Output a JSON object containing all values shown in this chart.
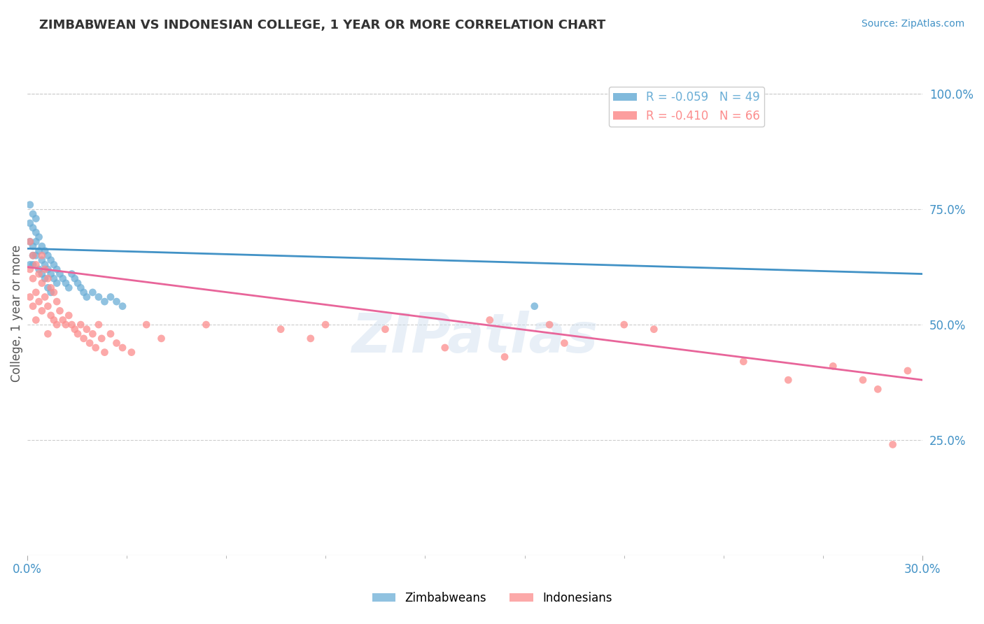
{
  "title": "ZIMBABWEAN VS INDONESIAN COLLEGE, 1 YEAR OR MORE CORRELATION CHART",
  "source_text": "Source: ZipAtlas.com",
  "ylabel": "College, 1 year or more",
  "xlim": [
    0.0,
    0.3
  ],
  "ylim": [
    0.0,
    1.05
  ],
  "xtick_labels": [
    "0.0%",
    "30.0%"
  ],
  "ytick_labels_right": [
    "25.0%",
    "50.0%",
    "75.0%",
    "100.0%"
  ],
  "ytick_vals_right": [
    0.25,
    0.5,
    0.75,
    1.0
  ],
  "legend_entries": [
    {
      "label": "R = -0.059   N = 49",
      "color": "#6baed6"
    },
    {
      "label": "R = -0.410   N = 66",
      "color": "#fc8d8d"
    }
  ],
  "zim_scatter_x": [
    0.001,
    0.001,
    0.001,
    0.001,
    0.002,
    0.002,
    0.002,
    0.002,
    0.002,
    0.003,
    0.003,
    0.003,
    0.003,
    0.004,
    0.004,
    0.004,
    0.005,
    0.005,
    0.005,
    0.006,
    0.006,
    0.006,
    0.007,
    0.007,
    0.007,
    0.008,
    0.008,
    0.008,
    0.009,
    0.009,
    0.01,
    0.01,
    0.011,
    0.012,
    0.013,
    0.014,
    0.015,
    0.016,
    0.017,
    0.018,
    0.019,
    0.02,
    0.022,
    0.024,
    0.026,
    0.028,
    0.03,
    0.032,
    0.17
  ],
  "zim_scatter_y": [
    0.68,
    0.72,
    0.76,
    0.63,
    0.74,
    0.67,
    0.71,
    0.65,
    0.63,
    0.7,
    0.65,
    0.68,
    0.73,
    0.66,
    0.62,
    0.69,
    0.64,
    0.67,
    0.61,
    0.66,
    0.63,
    0.6,
    0.65,
    0.62,
    0.58,
    0.64,
    0.61,
    0.57,
    0.63,
    0.6,
    0.62,
    0.59,
    0.61,
    0.6,
    0.59,
    0.58,
    0.61,
    0.6,
    0.59,
    0.58,
    0.57,
    0.56,
    0.57,
    0.56,
    0.55,
    0.56,
    0.55,
    0.54,
    0.54
  ],
  "ind_scatter_x": [
    0.001,
    0.001,
    0.001,
    0.002,
    0.002,
    0.002,
    0.003,
    0.003,
    0.003,
    0.004,
    0.004,
    0.005,
    0.005,
    0.005,
    0.006,
    0.006,
    0.007,
    0.007,
    0.007,
    0.008,
    0.008,
    0.009,
    0.009,
    0.01,
    0.01,
    0.011,
    0.012,
    0.013,
    0.014,
    0.015,
    0.016,
    0.017,
    0.018,
    0.019,
    0.02,
    0.021,
    0.022,
    0.023,
    0.024,
    0.025,
    0.026,
    0.028,
    0.03,
    0.032,
    0.035,
    0.04,
    0.045,
    0.06,
    0.085,
    0.095,
    0.1,
    0.12,
    0.14,
    0.155,
    0.16,
    0.175,
    0.18,
    0.2,
    0.21,
    0.24,
    0.255,
    0.27,
    0.28,
    0.285,
    0.29,
    0.295
  ],
  "ind_scatter_y": [
    0.68,
    0.62,
    0.56,
    0.65,
    0.6,
    0.54,
    0.63,
    0.57,
    0.51,
    0.61,
    0.55,
    0.65,
    0.59,
    0.53,
    0.62,
    0.56,
    0.6,
    0.54,
    0.48,
    0.58,
    0.52,
    0.57,
    0.51,
    0.55,
    0.5,
    0.53,
    0.51,
    0.5,
    0.52,
    0.5,
    0.49,
    0.48,
    0.5,
    0.47,
    0.49,
    0.46,
    0.48,
    0.45,
    0.5,
    0.47,
    0.44,
    0.48,
    0.46,
    0.45,
    0.44,
    0.5,
    0.47,
    0.5,
    0.49,
    0.47,
    0.5,
    0.49,
    0.45,
    0.51,
    0.43,
    0.5,
    0.46,
    0.5,
    0.49,
    0.42,
    0.38,
    0.41,
    0.38,
    0.36,
    0.24,
    0.4
  ],
  "zim_line_x": [
    0.0,
    0.3
  ],
  "zim_line_y": [
    0.665,
    0.61
  ],
  "ind_line_x": [
    0.0,
    0.3
  ],
  "ind_line_y": [
    0.625,
    0.38
  ],
  "zim_color": "#6baed6",
  "ind_color": "#fc8d8d",
  "zim_line_color": "#4292c6",
  "ind_line_color": "#e8659a",
  "background_color": "#ffffff",
  "grid_color": "#cccccc",
  "title_color": "#333333",
  "axis_label_color": "#555555",
  "tick_color": "#4292c6",
  "watermark_text": "ZIPatlas",
  "title_fontsize": 13,
  "source_fontsize": 10,
  "legend_fontsize": 12,
  "axis_label_fontsize": 12
}
